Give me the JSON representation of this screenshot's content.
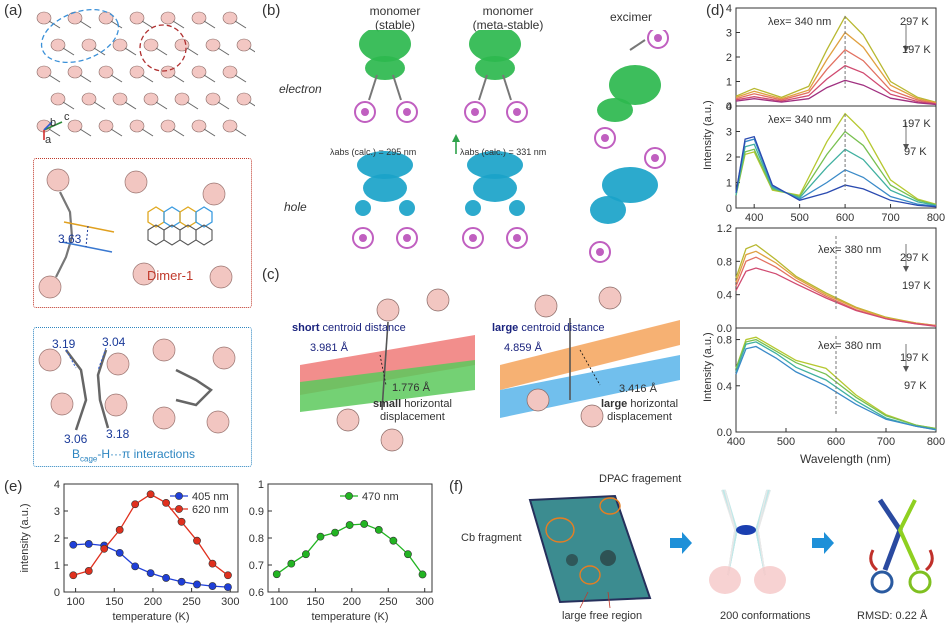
{
  "panels": {
    "a": "(a)",
    "b": "(b)",
    "c": "(c)",
    "d": "(d)",
    "e": "(e)",
    "f": "(f)"
  },
  "panel_a": {
    "axes": {
      "c": "c",
      "b": "b",
      "a": "a"
    },
    "dimer_distance": "3.63",
    "dimer_label": "Dimer-1",
    "bh_distances": [
      "3.19",
      "3.04",
      "3.06",
      "3.18"
    ],
    "interaction_prefix": "B",
    "interaction_sub": "cage",
    "interaction_suffix": "-H···π interactions"
  },
  "panel_b": {
    "col1": [
      "monomer",
      "(stable)"
    ],
    "col2": [
      "monomer",
      "(meta-stable)"
    ],
    "col3": "excimer",
    "row1": "electron",
    "row2": "hole",
    "abs1": "λabs (calc.) = 295  nm",
    "abs2": "λabs (calc.) = 331  nm",
    "colors": {
      "electron": "#2db84e",
      "hole": "#1aa3c9",
      "cage": "#c05fc0",
      "arrow1": "#3a9be0",
      "arrow2": "#2da24a"
    }
  },
  "panel_c": {
    "short_bold": "short",
    "short_rest": " centroid distance",
    "large_bold": "large",
    "large_rest": " centroid distance",
    "d1": "3.981 Å",
    "d2": "1.776 Å",
    "d3": "4.859 Å",
    "d4": "3.416 Å",
    "small_bold": "small",
    "small_rest": " horizontal",
    "displacement": "displacement",
    "large2_bold": "large",
    "large2_rest": " horizontal",
    "colors": {
      "red": "#f07a78",
      "green": "#5cc95c",
      "orange": "#f5a35a",
      "blue": "#58b4ea"
    }
  },
  "panel_d": {
    "ylabel": "Intensity (a.u.)",
    "ylabel2": "Intensity (a.u.)",
    "xlabel": "Wavelength (nm)",
    "ex1": "λex= 340 nm",
    "ex2": "λex= 340 nm",
    "ex3": "λex= 380 nm",
    "ex4": "λex= 380 nm",
    "t_top1": "297 K",
    "t_bot1": "197 K",
    "t_top2": "197 K",
    "t_bot2": "97 K",
    "t_top3": "297 K",
    "t_bot3": "197 K",
    "t_top4": "197 K",
    "t_bot4": "97 K"
  },
  "chart_data": [
    {
      "type": "line",
      "id": "e-left",
      "xlabel": "temperature (K)",
      "ylabel": "intensity (a.u.)",
      "xlim": [
        85,
        310
      ],
      "ylim": [
        0,
        4
      ],
      "xticks": [
        100,
        150,
        200,
        250,
        300
      ],
      "yticks": [
        0,
        1,
        2,
        3,
        4
      ],
      "x": [
        97,
        117,
        137,
        157,
        177,
        197,
        217,
        237,
        257,
        277,
        297
      ],
      "series": [
        {
          "name": "405 nm",
          "color": "#1f3fd8",
          "values": [
            1.75,
            1.78,
            1.72,
            1.45,
            0.95,
            0.7,
            0.52,
            0.38,
            0.28,
            0.22,
            0.18
          ]
        },
        {
          "name": "620 nm",
          "color": "#e0301e",
          "values": [
            0.62,
            0.78,
            1.6,
            2.3,
            3.25,
            3.62,
            3.3,
            2.6,
            1.9,
            1.05,
            0.62
          ]
        }
      ]
    },
    {
      "type": "line",
      "id": "e-right",
      "xlabel": "temperature (K)",
      "ylabel": "",
      "xlim": [
        85,
        310
      ],
      "ylim": [
        0.6,
        1.0
      ],
      "xticks": [
        100,
        150,
        200,
        250,
        300
      ],
      "yticks": [
        0.6,
        0.7,
        0.8,
        0.9,
        1
      ],
      "x": [
        97,
        117,
        137,
        157,
        177,
        197,
        217,
        237,
        257,
        277,
        297
      ],
      "series": [
        {
          "name": "470 nm",
          "color": "#22b422",
          "values": [
            0.666,
            0.705,
            0.74,
            0.805,
            0.82,
            0.848,
            0.852,
            0.83,
            0.79,
            0.74,
            0.665
          ]
        }
      ]
    },
    {
      "type": "line",
      "id": "d-1",
      "ylim": [
        0,
        4
      ],
      "yticks": [
        0,
        1,
        2,
        3,
        4
      ],
      "x": [
        360,
        400,
        460,
        520,
        560,
        600,
        640,
        700,
        760,
        800
      ],
      "series": [
        {
          "values": [
            0.4,
            0.72,
            0.35,
            0.8,
            2.3,
            3.65,
            2.9,
            1.0,
            0.35,
            0.15
          ]
        },
        {
          "values": [
            0.35,
            0.6,
            0.3,
            0.65,
            1.9,
            3.0,
            2.4,
            0.85,
            0.3,
            0.13
          ]
        },
        {
          "values": [
            0.3,
            0.5,
            0.25,
            0.55,
            1.5,
            2.3,
            1.85,
            0.65,
            0.24,
            0.1
          ]
        },
        {
          "values": [
            0.25,
            0.38,
            0.2,
            0.42,
            1.1,
            1.65,
            1.35,
            0.48,
            0.18,
            0.08
          ]
        },
        {
          "values": [
            0.2,
            0.3,
            0.16,
            0.3,
            0.75,
            1.05,
            0.85,
            0.32,
            0.13,
            0.06
          ]
        }
      ]
    },
    {
      "type": "line",
      "id": "d-2",
      "xlabel": "",
      "ylim": [
        0,
        4
      ],
      "yticks": [
        0,
        1,
        2,
        3,
        4
      ],
      "xlim": [
        360,
        800
      ],
      "xticks": [
        400,
        500,
        600,
        700,
        800
      ],
      "x": [
        360,
        380,
        400,
        440,
        500,
        560,
        600,
        640,
        700,
        760,
        800
      ],
      "series": [
        {
          "values": [
            0.5,
            2.1,
            2.2,
            0.7,
            0.5,
            2.6,
            3.7,
            3.0,
            1.1,
            0.35,
            0.15
          ]
        },
        {
          "values": [
            0.5,
            2.2,
            2.3,
            0.75,
            0.45,
            2.1,
            3.0,
            2.45,
            0.9,
            0.3,
            0.13
          ]
        },
        {
          "values": [
            0.5,
            2.4,
            2.5,
            0.8,
            0.4,
            1.6,
            2.3,
            1.9,
            0.7,
            0.24,
            0.1
          ]
        },
        {
          "values": [
            0.6,
            2.6,
            2.7,
            0.85,
            0.35,
            1.0,
            1.5,
            1.2,
            0.45,
            0.15,
            0.07
          ]
        },
        {
          "values": [
            0.6,
            2.7,
            2.8,
            0.9,
            0.3,
            0.6,
            0.9,
            0.75,
            0.3,
            0.1,
            0.05
          ]
        }
      ]
    },
    {
      "type": "line",
      "id": "d-3",
      "ylim": [
        0,
        1.2
      ],
      "yticks": [
        0.0,
        0.4,
        0.8,
        1.2
      ],
      "x": [
        400,
        420,
        440,
        480,
        520,
        580,
        640,
        700,
        760,
        800
      ],
      "series": [
        {
          "values": [
            0.6,
            0.95,
            1.0,
            0.82,
            0.62,
            0.42,
            0.25,
            0.13,
            0.06,
            0.03
          ]
        },
        {
          "values": [
            0.55,
            0.88,
            0.92,
            0.78,
            0.6,
            0.4,
            0.24,
            0.12,
            0.06,
            0.03
          ]
        },
        {
          "values": [
            0.5,
            0.8,
            0.85,
            0.73,
            0.57,
            0.38,
            0.22,
            0.11,
            0.05,
            0.03
          ]
        },
        {
          "values": [
            0.45,
            0.68,
            0.72,
            0.65,
            0.53,
            0.36,
            0.21,
            0.11,
            0.05,
            0.02
          ]
        }
      ]
    },
    {
      "type": "line",
      "id": "d-4",
      "xlabel": "Wavelength (nm)",
      "ylim": [
        0,
        0.9
      ],
      "yticks": [
        0.0,
        0.4,
        0.8
      ],
      "xlim": [
        400,
        800
      ],
      "xticks": [
        400,
        500,
        600,
        700,
        800
      ],
      "x": [
        400,
        420,
        440,
        480,
        520,
        580,
        640,
        700,
        760,
        800
      ],
      "series": [
        {
          "values": [
            0.55,
            0.8,
            0.82,
            0.72,
            0.62,
            0.55,
            0.32,
            0.15,
            0.06,
            0.03
          ]
        },
        {
          "values": [
            0.55,
            0.78,
            0.8,
            0.7,
            0.6,
            0.5,
            0.3,
            0.14,
            0.06,
            0.03
          ]
        },
        {
          "values": [
            0.52,
            0.76,
            0.78,
            0.68,
            0.56,
            0.45,
            0.27,
            0.12,
            0.05,
            0.02
          ]
        },
        {
          "values": [
            0.5,
            0.72,
            0.74,
            0.64,
            0.52,
            0.4,
            0.24,
            0.11,
            0.05,
            0.02
          ]
        }
      ]
    }
  ],
  "panel_f": {
    "dpac": "DPAC fragement",
    "cb": "Cb fragment",
    "free": "large free region",
    "confs": "200 conformations",
    "rmsd": "RMSD: 0.22 Å"
  }
}
